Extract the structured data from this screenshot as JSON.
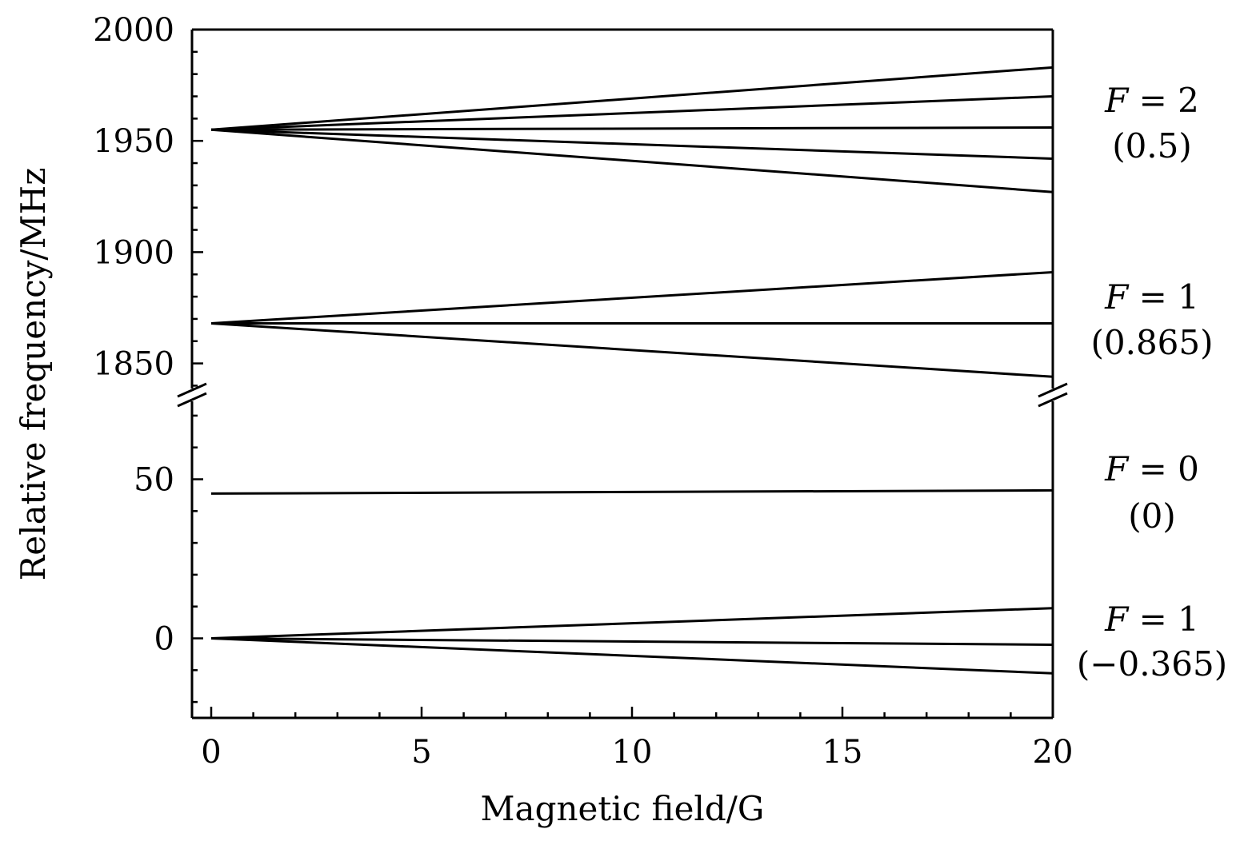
{
  "chart_data": {
    "type": "line",
    "title": "",
    "xlabel": "Magnetic field/G",
    "ylabel": "Relative frequency/MHz",
    "xlim": [
      0,
      20
    ],
    "x_ticks": [
      0,
      5,
      10,
      15,
      20
    ],
    "x_tick_labels": [
      "0",
      "5",
      "10",
      "15",
      "20"
    ],
    "broken_y_axis": true,
    "y_segments": [
      {
        "name": "upper",
        "ylim": [
          1838,
          2000
        ],
        "ticks": [
          1850,
          1900,
          1950,
          2000
        ],
        "tick_labels": [
          "1850",
          "1900",
          "1950",
          "2000"
        ]
      },
      {
        "name": "lower",
        "ylim": [
          -25,
          75
        ],
        "ticks": [
          0,
          50
        ],
        "tick_labels": [
          "0",
          "50"
        ]
      }
    ],
    "grid": false,
    "line_color": "#000000",
    "groups": [
      {
        "label": "F = 2",
        "g_factor": "(0.5)",
        "label_parts": [
          "F",
          " = 2"
        ],
        "y_at_zero": 1955,
        "lines": [
          {
            "x": [
              0,
              20
            ],
            "y": [
              1955,
              1983
            ]
          },
          {
            "x": [
              0,
              20
            ],
            "y": [
              1955,
              1970
            ]
          },
          {
            "x": [
              0,
              20
            ],
            "y": [
              1955,
              1956
            ]
          },
          {
            "x": [
              0,
              20
            ],
            "y": [
              1955,
              1942
            ]
          },
          {
            "x": [
              0,
              20
            ],
            "y": [
              1955,
              1927
            ]
          }
        ]
      },
      {
        "label": "F = 1",
        "g_factor": "(0.865)",
        "label_parts": [
          "F",
          " = 1"
        ],
        "y_at_zero": 1868,
        "lines": [
          {
            "x": [
              0,
              20
            ],
            "y": [
              1868,
              1891
            ]
          },
          {
            "x": [
              0,
              20
            ],
            "y": [
              1868,
              1868
            ]
          },
          {
            "x": [
              0,
              20
            ],
            "y": [
              1868,
              1844
            ]
          }
        ]
      },
      {
        "label": "F = 0",
        "g_factor": "(0)",
        "label_parts": [
          "F",
          " = 0"
        ],
        "y_at_zero": 45.5,
        "lines": [
          {
            "x": [
              0,
              20
            ],
            "y": [
              45.5,
              46.5
            ]
          }
        ]
      },
      {
        "label": "F = 1",
        "g_factor": "(−0.365)",
        "label_parts": [
          "F",
          " = 1"
        ],
        "y_at_zero": 0,
        "lines": [
          {
            "x": [
              0,
              20
            ],
            "y": [
              0,
              9.5
            ]
          },
          {
            "x": [
              0,
              20
            ],
            "y": [
              0,
              -2
            ]
          },
          {
            "x": [
              0,
              20
            ],
            "y": [
              0,
              -11
            ]
          }
        ]
      }
    ]
  }
}
